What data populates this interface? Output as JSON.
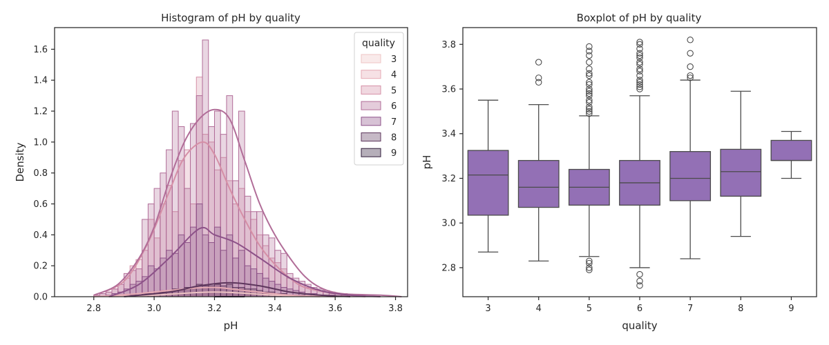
{
  "chart_data": [
    {
      "type": "histogram",
      "title": "Histogram of pH by quality",
      "xlabel": "pH",
      "ylabel": "Density",
      "xlim": [
        2.67,
        3.84
      ],
      "ylim": [
        0,
        1.74
      ],
      "xticks": [
        2.8,
        3.0,
        3.2,
        3.4,
        3.6,
        3.8
      ],
      "yticks": [
        0.0,
        0.2,
        0.4,
        0.6,
        0.8,
        1.0,
        1.2,
        1.4,
        1.6
      ],
      "xtick_labels": [
        "2.8",
        "3.0",
        "3.2",
        "3.4",
        "3.6",
        "3.8"
      ],
      "ytick_labels": [
        "0.0",
        "0.2",
        "0.4",
        "0.6",
        "0.8",
        "1.0",
        "1.2",
        "1.4",
        "1.6"
      ],
      "bins": [
        2.72,
        2.74,
        2.76,
        2.78,
        2.8,
        2.82,
        2.84,
        2.86,
        2.88,
        2.9,
        2.92,
        2.94,
        2.96,
        2.98,
        3.0,
        3.02,
        3.04,
        3.06,
        3.08,
        3.1,
        3.12,
        3.14,
        3.16,
        3.18,
        3.2,
        3.22,
        3.24,
        3.26,
        3.28,
        3.3,
        3.32,
        3.34,
        3.36,
        3.38,
        3.4,
        3.42,
        3.44,
        3.46,
        3.48,
        3.5,
        3.52,
        3.54,
        3.56,
        3.58,
        3.6,
        3.62,
        3.64,
        3.66,
        3.68,
        3.7,
        3.72,
        3.74,
        3.76,
        3.78,
        3.8,
        3.82
      ],
      "legend_title": "quality",
      "legend_position": "upper right",
      "series": [
        {
          "name": "3",
          "color": "#eec4c4",
          "density": [
            0,
            0,
            0,
            0,
            0,
            0,
            0,
            0,
            0,
            0.01,
            0.01,
            0,
            0.01,
            0.01,
            0.01,
            0,
            0.01,
            0.02,
            0.01,
            0.02,
            0.01,
            0.01,
            0.02,
            0.02,
            0.03,
            0.01,
            0.02,
            0.01,
            0.01,
            0.01,
            0.02,
            0,
            0.01,
            0.01,
            0,
            0,
            0,
            0,
            0,
            0,
            0,
            0,
            0,
            0,
            0,
            0,
            0,
            0,
            0,
            0,
            0,
            0,
            0,
            0,
            0
          ],
          "kde": [
            [
              2.85,
              0.0
            ],
            [
              3.0,
              0.01
            ],
            [
              3.2,
              0.03
            ],
            [
              3.4,
              0.01
            ],
            [
              3.55,
              0.0
            ]
          ]
        },
        {
          "name": "4",
          "color": "#e6aab4",
          "density": [
            0,
            0,
            0,
            0,
            0,
            0,
            0,
            0,
            0.01,
            0.01,
            0.01,
            0.02,
            0.02,
            0.03,
            0.03,
            0.04,
            0.03,
            0.05,
            0.04,
            0.06,
            0.05,
            0.06,
            0.05,
            0.06,
            0.07,
            0.05,
            0.05,
            0.04,
            0.05,
            0.03,
            0.03,
            0.02,
            0.02,
            0.02,
            0.01,
            0.01,
            0.01,
            0.01,
            0,
            0,
            0,
            0,
            0,
            0,
            0,
            0,
            0,
            0,
            0,
            0,
            0,
            0,
            0,
            0,
            0
          ],
          "kde": [
            [
              2.8,
              0.0
            ],
            [
              2.95,
              0.02
            ],
            [
              3.1,
              0.05
            ],
            [
              3.2,
              0.06
            ],
            [
              3.3,
              0.04
            ],
            [
              3.45,
              0.01
            ],
            [
              3.6,
              0.0
            ]
          ]
        },
        {
          "name": "5",
          "color": "#d58fa6",
          "density": [
            0,
            0,
            0,
            0,
            0.01,
            0.02,
            0.03,
            0.05,
            0.08,
            0.12,
            0.2,
            0.24,
            0.3,
            0.5,
            0.38,
            0.6,
            0.72,
            0.55,
            0.88,
            0.95,
            0.6,
            1.42,
            1.05,
            1.0,
            0.82,
            0.9,
            0.75,
            0.6,
            0.7,
            0.55,
            0.5,
            0.4,
            0.33,
            0.25,
            0.22,
            0.18,
            0.12,
            0.1,
            0.08,
            0.06,
            0.05,
            0.04,
            0.03,
            0.02,
            0.02,
            0.01,
            0.01,
            0.01,
            0,
            0,
            0,
            0,
            0,
            0,
            0
          ],
          "kde": [
            [
              2.8,
              0.01
            ],
            [
              2.9,
              0.1
            ],
            [
              2.98,
              0.35
            ],
            [
              3.05,
              0.68
            ],
            [
              3.1,
              0.9
            ],
            [
              3.16,
              1.0
            ],
            [
              3.2,
              0.92
            ],
            [
              3.25,
              0.7
            ],
            [
              3.3,
              0.5
            ],
            [
              3.35,
              0.33
            ],
            [
              3.4,
              0.21
            ],
            [
              3.45,
              0.12
            ],
            [
              3.5,
              0.06
            ],
            [
              3.6,
              0.02
            ],
            [
              3.7,
              0.0
            ]
          ]
        },
        {
          "name": "6",
          "color": "#b16d98",
          "density": [
            0,
            0,
            0,
            0,
            0.01,
            0.02,
            0.03,
            0.05,
            0.08,
            0.15,
            0.17,
            0.18,
            0.5,
            0.6,
            0.7,
            0.8,
            0.95,
            1.2,
            1.1,
            0.7,
            1.12,
            1.3,
            1.66,
            1.1,
            1.2,
            1.05,
            1.3,
            0.75,
            1.2,
            0.65,
            0.55,
            0.55,
            0.4,
            0.38,
            0.3,
            0.28,
            0.15,
            0.12,
            0.1,
            0.08,
            0.06,
            0.05,
            0.04,
            0.03,
            0.02,
            0.02,
            0.01,
            0.01,
            0.01,
            0,
            0,
            0,
            0,
            0,
            0
          ],
          "kde": [
            [
              2.8,
              0.01
            ],
            [
              2.88,
              0.08
            ],
            [
              2.95,
              0.25
            ],
            [
              3.0,
              0.45
            ],
            [
              3.05,
              0.75
            ],
            [
              3.1,
              1.0
            ],
            [
              3.15,
              1.15
            ],
            [
              3.2,
              1.21
            ],
            [
              3.25,
              1.15
            ],
            [
              3.3,
              0.88
            ],
            [
              3.35,
              0.6
            ],
            [
              3.4,
              0.4
            ],
            [
              3.45,
              0.25
            ],
            [
              3.5,
              0.13
            ],
            [
              3.55,
              0.06
            ],
            [
              3.62,
              0.02
            ],
            [
              3.75,
              0.01
            ],
            [
              3.82,
              0.0
            ]
          ]
        },
        {
          "name": "7",
          "color": "#8c5188",
          "density": [
            0,
            0,
            0,
            0,
            0,
            0,
            0.01,
            0.02,
            0.03,
            0.05,
            0.08,
            0.1,
            0.13,
            0.2,
            0.18,
            0.25,
            0.3,
            0.28,
            0.4,
            0.35,
            0.45,
            0.6,
            0.4,
            0.35,
            0.45,
            0.3,
            0.4,
            0.25,
            0.3,
            0.2,
            0.18,
            0.15,
            0.12,
            0.1,
            0.08,
            0.06,
            0.05,
            0.04,
            0.03,
            0.02,
            0.02,
            0.01,
            0.01,
            0.01,
            0,
            0,
            0,
            0,
            0,
            0,
            0,
            0,
            0,
            0,
            0
          ],
          "kde": [
            [
              2.85,
              0.0
            ],
            [
              2.95,
              0.08
            ],
            [
              3.05,
              0.25
            ],
            [
              3.15,
              0.44
            ],
            [
              3.2,
              0.4
            ],
            [
              3.27,
              0.35
            ],
            [
              3.35,
              0.25
            ],
            [
              3.45,
              0.12
            ],
            [
              3.55,
              0.04
            ],
            [
              3.65,
              0.01
            ],
            [
              3.75,
              0.0
            ]
          ]
        },
        {
          "name": "8",
          "color": "#5d365c",
          "density": [
            0,
            0,
            0,
            0,
            0,
            0,
            0,
            0,
            0,
            0,
            0.01,
            0.01,
            0.02,
            0.02,
            0.03,
            0.03,
            0.04,
            0.05,
            0.05,
            0.06,
            0.06,
            0.08,
            0.07,
            0.07,
            0.08,
            0.07,
            0.08,
            0.06,
            0.06,
            0.05,
            0.05,
            0.04,
            0.03,
            0.03,
            0.02,
            0.02,
            0.01,
            0.01,
            0.01,
            0,
            0,
            0,
            0,
            0,
            0,
            0,
            0,
            0,
            0,
            0,
            0,
            0,
            0,
            0,
            0
          ],
          "kde": [
            [
              2.9,
              0.0
            ],
            [
              3.05,
              0.03
            ],
            [
              3.15,
              0.07
            ],
            [
              3.25,
              0.09
            ],
            [
              3.35,
              0.07
            ],
            [
              3.45,
              0.03
            ],
            [
              3.55,
              0.01
            ],
            [
              3.65,
              0.0
            ]
          ]
        },
        {
          "name": "9",
          "color": "#2e1a38",
          "density": [
            0,
            0,
            0,
            0,
            0,
            0,
            0,
            0,
            0,
            0,
            0,
            0,
            0,
            0,
            0,
            0,
            0,
            0,
            0,
            0,
            0,
            0,
            0,
            0,
            0,
            0,
            0,
            0,
            0,
            0,
            0,
            0,
            0,
            0,
            0,
            0,
            0,
            0,
            0,
            0,
            0,
            0,
            0,
            0,
            0,
            0,
            0,
            0,
            0,
            0,
            0,
            0,
            0,
            0,
            0
          ],
          "kde": [
            [
              3.2,
              0.0
            ],
            [
              3.3,
              0.0
            ]
          ]
        }
      ]
    },
    {
      "type": "boxplot",
      "title": "Boxplot of pH by quality",
      "xlabel": "quality",
      "ylabel": "pH",
      "ylim": [
        2.67,
        3.875
      ],
      "yticks": [
        2.8,
        3.0,
        3.2,
        3.4,
        3.6,
        3.8
      ],
      "ytick_labels": [
        "2.8",
        "3.0",
        "3.2",
        "3.4",
        "3.6",
        "3.8"
      ],
      "categories": [
        "3",
        "4",
        "5",
        "6",
        "7",
        "8",
        "9"
      ],
      "box_color": "#9370b5",
      "boxes": [
        {
          "category": "3",
          "whislo": 2.87,
          "q1": 3.035,
          "med": 3.215,
          "q3": 3.325,
          "whishi": 3.55,
          "fliers": []
        },
        {
          "category": "4",
          "whislo": 2.83,
          "q1": 3.07,
          "med": 3.16,
          "q3": 3.28,
          "whishi": 3.53,
          "fliers": [
            3.63,
            3.65,
            3.72
          ]
        },
        {
          "category": "5",
          "whislo": 2.85,
          "q1": 3.08,
          "med": 3.16,
          "q3": 3.24,
          "whishi": 3.48,
          "fliers": [
            2.79,
            2.8,
            2.82,
            2.83,
            3.49,
            3.5,
            3.51,
            3.52,
            3.54,
            3.55,
            3.57,
            3.58,
            3.59,
            3.6,
            3.62,
            3.63,
            3.66,
            3.67,
            3.69,
            3.72,
            3.75,
            3.77,
            3.79
          ]
        },
        {
          "category": "6",
          "whislo": 2.8,
          "q1": 3.08,
          "med": 3.18,
          "q3": 3.28,
          "whishi": 3.57,
          "fliers": [
            2.72,
            2.74,
            2.77,
            3.6,
            3.61,
            3.62,
            3.63,
            3.64,
            3.66,
            3.68,
            3.69,
            3.71,
            3.72,
            3.74,
            3.75,
            3.76,
            3.78,
            3.8,
            3.81
          ]
        },
        {
          "category": "7",
          "whislo": 2.84,
          "q1": 3.1,
          "med": 3.2,
          "q3": 3.32,
          "whishi": 3.64,
          "fliers": [
            3.65,
            3.66,
            3.7,
            3.76,
            3.82
          ]
        },
        {
          "category": "8",
          "whislo": 2.94,
          "q1": 3.12,
          "med": 3.23,
          "q3": 3.33,
          "whishi": 3.59,
          "fliers": []
        },
        {
          "category": "9",
          "whislo": 3.2,
          "q1": 3.28,
          "med": 3.28,
          "q3": 3.37,
          "whishi": 3.41,
          "fliers": []
        }
      ]
    }
  ]
}
